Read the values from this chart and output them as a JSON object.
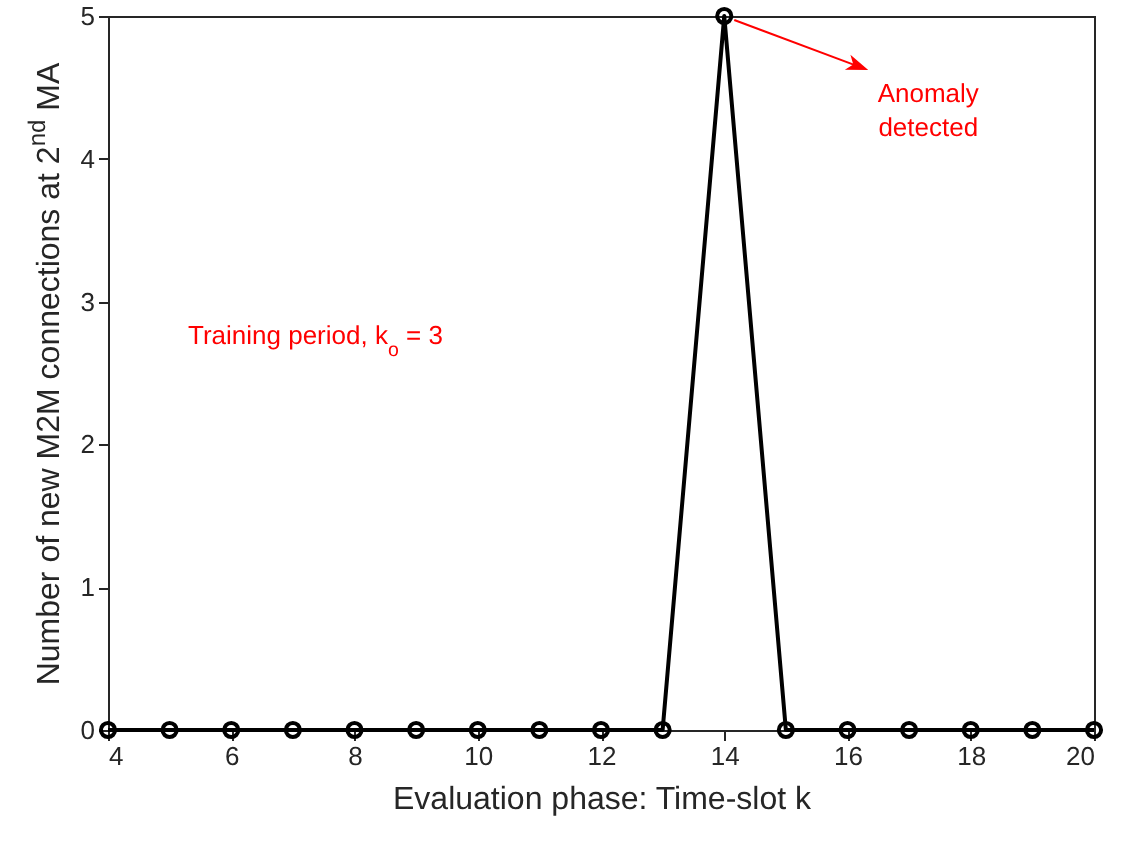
{
  "chart_data": {
    "type": "line",
    "xlabel": "Evaluation phase: Time-slot k",
    "ylabel": "Number of new M2M connections at 2$^{nd}$ MA",
    "x": [
      4,
      5,
      6,
      7,
      8,
      9,
      10,
      11,
      12,
      13,
      14,
      15,
      16,
      17,
      18,
      19,
      20
    ],
    "series": [
      {
        "color": "#000000",
        "values": [
          0,
          0,
          0,
          0,
          0,
          0,
          0,
          0,
          0,
          0,
          5,
          0,
          0,
          0,
          0,
          0,
          0
        ]
      }
    ],
    "xlim": [
      4,
      20
    ],
    "xticks": [
      4,
      6,
      8,
      10,
      12,
      14,
      16,
      18,
      20
    ],
    "ylim": [
      0,
      5
    ],
    "yticks": [
      0,
      1,
      2,
      3,
      4,
      5
    ],
    "grid": false,
    "marker": "circle",
    "line_style": "solid",
    "annotations": [
      "Training period, k$_{o}$ = 3",
      {
        "text": "Anomaly detected",
        "x": 14,
        "y": 5
      }
    ]
  }
}
